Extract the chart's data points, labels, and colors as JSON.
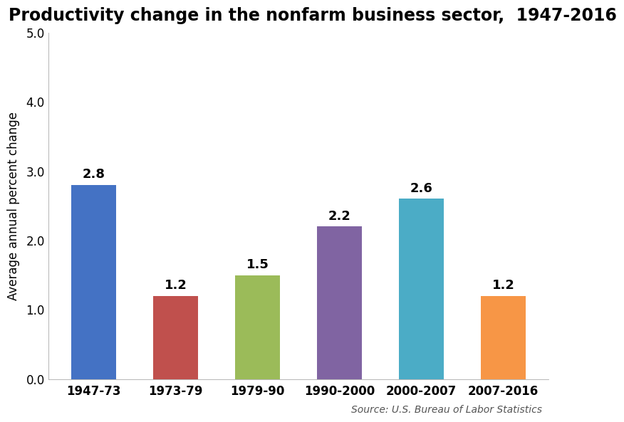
{
  "title": "Productivity change in the nonfarm business sector,  1947-2016",
  "ylabel": "Average annual percent change",
  "source": "Source: U.S. Bureau of Labor Statistics",
  "categories": [
    "1947-73",
    "1973-79",
    "1979-90",
    "1990-2000",
    "2000-2007",
    "2007-2016"
  ],
  "values": [
    2.8,
    1.2,
    1.5,
    2.2,
    2.6,
    1.2
  ],
  "bar_colors": [
    "#4472C4",
    "#C0504D",
    "#9BBB59",
    "#8064A2",
    "#4BACC6",
    "#F79646"
  ],
  "ylim": [
    0,
    5.0
  ],
  "yticks": [
    0.0,
    1.0,
    2.0,
    3.0,
    4.0,
    5.0
  ],
  "title_fontsize": 17,
  "label_fontsize": 12,
  "tick_fontsize": 12,
  "annotation_fontsize": 13,
  "source_fontsize": 10,
  "bar_width": 0.55,
  "background_color": "#FFFFFF"
}
